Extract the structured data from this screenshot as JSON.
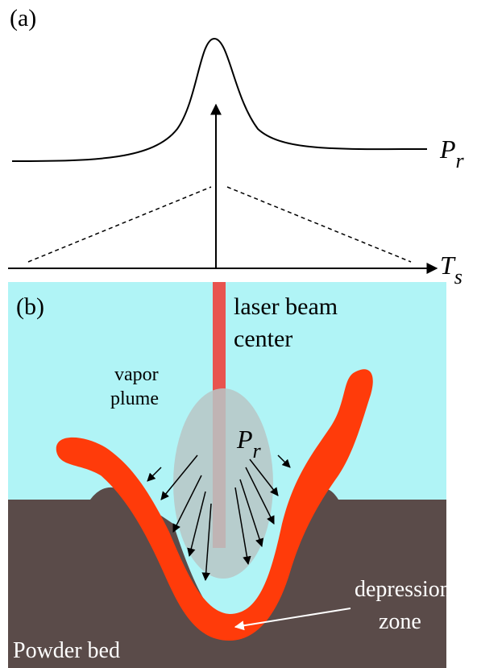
{
  "panel_a": {
    "label": "(a)",
    "curve_label": {
      "main": "P",
      "sub": "r"
    },
    "axis_label": {
      "main": "T",
      "sub": "s"
    }
  },
  "panel_b": {
    "label": "(b)",
    "beam_label": [
      "laser beam",
      "center"
    ],
    "plume_label": [
      "vapor",
      "plume"
    ],
    "pressure_label": {
      "main": "P",
      "sub": "r"
    },
    "zone_label": [
      "depression",
      "zone"
    ],
    "bed_label": "Powder bed"
  }
}
